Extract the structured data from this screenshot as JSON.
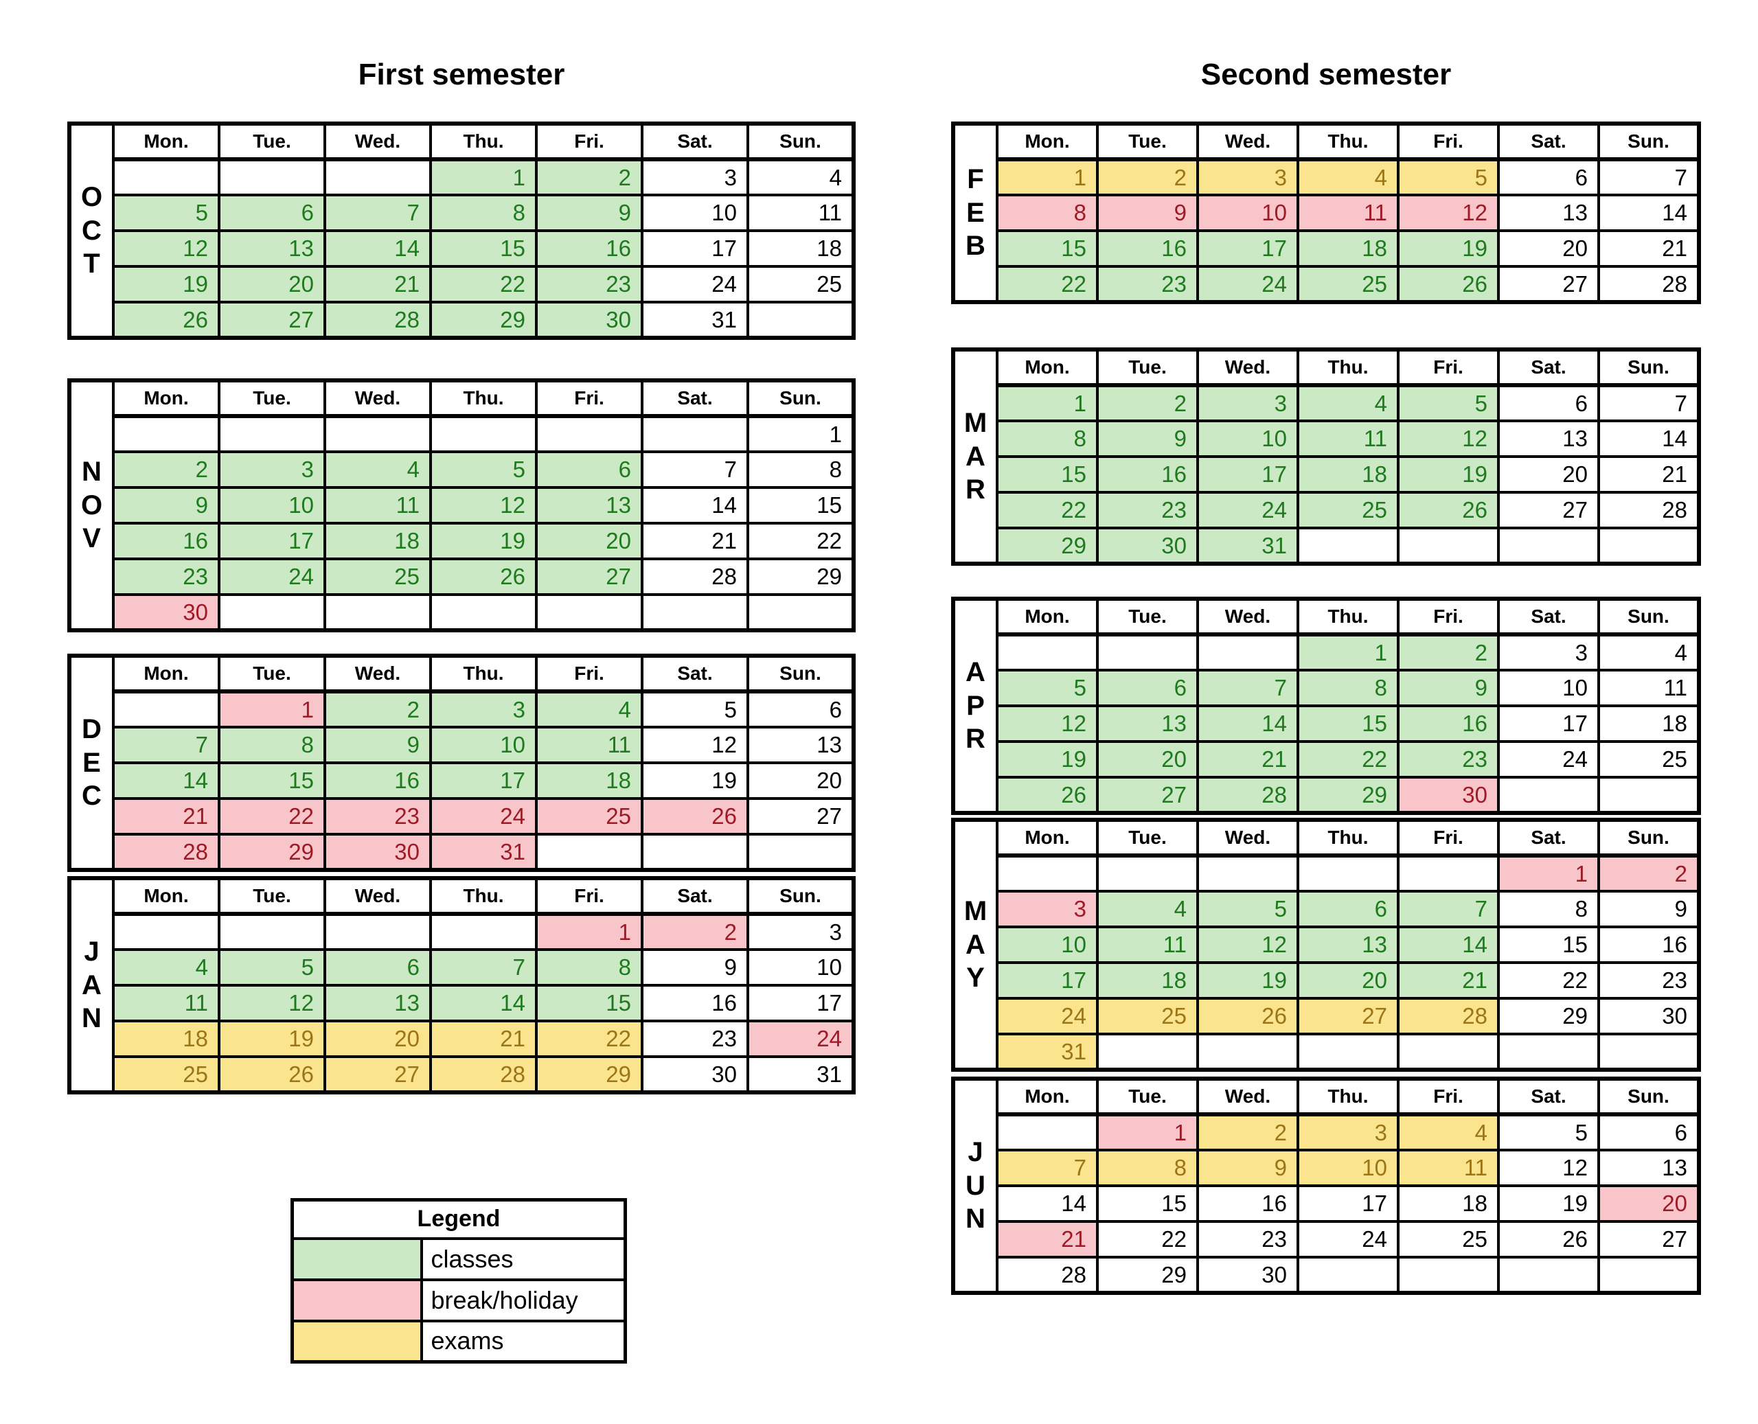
{
  "page": {
    "background": "#FFFFFF"
  },
  "day_headers": [
    "Mon.",
    "Tue.",
    "Wed.",
    "Thu.",
    "Fri.",
    "Sat.",
    "Sun."
  ],
  "kinds": {
    "c": "classes",
    "b": "break-holiday",
    "e": "exams",
    "n": "regular-day"
  },
  "colors": {
    "classes": {
      "bg": "#CBE9C4",
      "text": "#1F7A1F"
    },
    "break": {
      "bg": "#F8C5CB",
      "text": "#9E1B26"
    },
    "exams": {
      "bg": "#FAE48E",
      "text": "#9C7616"
    },
    "none": {
      "bg": "#FFFFFF",
      "text": "#000000"
    },
    "border": "#000000"
  },
  "first_semester": {
    "title": "First semester",
    "months": [
      {
        "name": "OCT",
        "letters": [
          "O",
          "C",
          "T"
        ],
        "weeks": [
          [
            "",
            "",
            "",
            "1c",
            "2c",
            "3n",
            "4n"
          ],
          [
            "5c",
            "6c",
            "7c",
            "8c",
            "9c",
            "10n",
            "11n"
          ],
          [
            "12c",
            "13c",
            "14c",
            "15c",
            "16c",
            "17n",
            "18n"
          ],
          [
            "19c",
            "20c",
            "21c",
            "22c",
            "23c",
            "24n",
            "25n"
          ],
          [
            "26c",
            "27c",
            "28c",
            "29c",
            "30c",
            "31n",
            ""
          ]
        ]
      },
      {
        "name": "NOV",
        "letters": [
          "N",
          "O",
          "V"
        ],
        "weeks": [
          [
            "",
            "",
            "",
            "",
            "",
            "",
            "1n"
          ],
          [
            "2c",
            "3c",
            "4c",
            "5c",
            "6c",
            "7n",
            "8n"
          ],
          [
            "9c",
            "10c",
            "11c",
            "12c",
            "13c",
            "14n",
            "15n"
          ],
          [
            "16c",
            "17c",
            "18c",
            "19c",
            "20c",
            "21n",
            "22n"
          ],
          [
            "23c",
            "24c",
            "25c",
            "26c",
            "27c",
            "28n",
            "29n"
          ],
          [
            "30b",
            "",
            "",
            "",
            "",
            "",
            ""
          ]
        ]
      },
      {
        "name": "DEC",
        "letters": [
          "D",
          "E",
          "C"
        ],
        "weeks": [
          [
            "",
            "1b",
            "2c",
            "3c",
            "4c",
            "5n",
            "6n"
          ],
          [
            "7c",
            "8c",
            "9c",
            "10c",
            "11c",
            "12n",
            "13n"
          ],
          [
            "14c",
            "15c",
            "16c",
            "17c",
            "18c",
            "19n",
            "20n"
          ],
          [
            "21b",
            "22b",
            "23b",
            "24b",
            "25b",
            "26b",
            "27n"
          ],
          [
            "28b",
            "29b",
            "30b",
            "31b",
            "",
            "",
            ""
          ]
        ]
      },
      {
        "name": "JAN",
        "letters": [
          "J",
          "A",
          "N"
        ],
        "weeks": [
          [
            "",
            "",
            "",
            "",
            "1b",
            "2b",
            "3n"
          ],
          [
            "4c",
            "5c",
            "6c",
            "7c",
            "8c",
            "9n",
            "10n"
          ],
          [
            "11c",
            "12c",
            "13c",
            "14c",
            "15c",
            "16n",
            "17n"
          ],
          [
            "18e",
            "19e",
            "20e",
            "21e",
            "22e",
            "23n",
            "24b"
          ],
          [
            "25e",
            "26e",
            "27e",
            "28e",
            "29e",
            "30n",
            "31n"
          ]
        ]
      }
    ]
  },
  "second_semester": {
    "title": "Second semester",
    "months": [
      {
        "name": "FEB",
        "letters": [
          "F",
          "E",
          "B"
        ],
        "weeks": [
          [
            "1e",
            "2e",
            "3e",
            "4e",
            "5e",
            "6n",
            "7n"
          ],
          [
            "8b",
            "9b",
            "10b",
            "11b",
            "12b",
            "13n",
            "14n"
          ],
          [
            "15c",
            "16c",
            "17c",
            "18c",
            "19c",
            "20n",
            "21n"
          ],
          [
            "22c",
            "23c",
            "24c",
            "25c",
            "26c",
            "27n",
            "28n"
          ]
        ]
      },
      {
        "name": "MAR",
        "letters": [
          "M",
          "A",
          "R"
        ],
        "weeks": [
          [
            "1c",
            "2c",
            "3c",
            "4c",
            "5c",
            "6n",
            "7n"
          ],
          [
            "8c",
            "9c",
            "10c",
            "11c",
            "12c",
            "13n",
            "14n"
          ],
          [
            "15c",
            "16c",
            "17c",
            "18c",
            "19c",
            "20n",
            "21n"
          ],
          [
            "22c",
            "23c",
            "24c",
            "25c",
            "26c",
            "27n",
            "28n"
          ],
          [
            "29c",
            "30c",
            "31c",
            "",
            "",
            "",
            ""
          ]
        ]
      },
      {
        "name": "APR",
        "letters": [
          "A",
          "P",
          "R"
        ],
        "weeks": [
          [
            "",
            "",
            "",
            "1c",
            "2c",
            "3n",
            "4n"
          ],
          [
            "5c",
            "6c",
            "7c",
            "8c",
            "9c",
            "10n",
            "11n"
          ],
          [
            "12c",
            "13c",
            "14c",
            "15c",
            "16c",
            "17n",
            "18n"
          ],
          [
            "19c",
            "20c",
            "21c",
            "22c",
            "23c",
            "24n",
            "25n"
          ],
          [
            "26c",
            "27c",
            "28c",
            "29c",
            "30b",
            "",
            ""
          ]
        ]
      },
      {
        "name": "MAY",
        "letters": [
          "M",
          "A",
          "Y"
        ],
        "weeks": [
          [
            "",
            "",
            "",
            "",
            "",
            "1b",
            "2b"
          ],
          [
            "3b",
            "4c",
            "5c",
            "6c",
            "7c",
            "8n",
            "9n"
          ],
          [
            "10c",
            "11c",
            "12c",
            "13c",
            "14c",
            "15n",
            "16n"
          ],
          [
            "17c",
            "18c",
            "19c",
            "20c",
            "21c",
            "22n",
            "23n"
          ],
          [
            "24e",
            "25e",
            "26e",
            "27e",
            "28e",
            "29n",
            "30n"
          ],
          [
            "31e",
            "",
            "",
            "",
            "",
            "",
            ""
          ]
        ]
      },
      {
        "name": "JUN",
        "letters": [
          "J",
          "U",
          "N"
        ],
        "weeks": [
          [
            "",
            "1b",
            "2e",
            "3e",
            "4e",
            "5n",
            "6n"
          ],
          [
            "7e",
            "8e",
            "9e",
            "10e",
            "11e",
            "12n",
            "13n"
          ],
          [
            "14n",
            "15n",
            "16n",
            "17n",
            "18n",
            "19n",
            "20b"
          ],
          [
            "21b",
            "22n",
            "23n",
            "24n",
            "25n",
            "26n",
            "27n"
          ],
          [
            "28n",
            "29n",
            "30n",
            "",
            "",
            "",
            ""
          ]
        ]
      }
    ]
  },
  "legend": {
    "title": "Legend",
    "items": [
      {
        "key": "c",
        "label": "classes"
      },
      {
        "key": "b",
        "label": "break/holiday"
      },
      {
        "key": "e",
        "label": "exams"
      }
    ]
  }
}
